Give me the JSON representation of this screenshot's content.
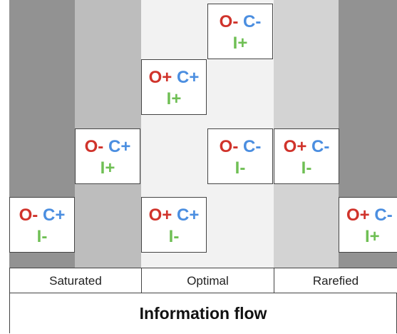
{
  "colors": {
    "o_red": "#d0332b",
    "c_blue": "#4b8ee0",
    "i_green": "#6fbf54",
    "band_dark": "#929292",
    "band_mid": "#bdbdbd",
    "band_light": "#d3d3d3",
    "band_lightest": "#f2f2f2"
  },
  "cells": [
    {
      "id": "cell-top-center",
      "o": "O-",
      "c": "C-",
      "i": "I+"
    },
    {
      "id": "cell-upper-left-center",
      "o": "O+",
      "c": "C+",
      "i": "I+"
    },
    {
      "id": "cell-mid-left",
      "o": "O-",
      "c": "C+",
      "i": "I+"
    },
    {
      "id": "cell-mid-center",
      "o": "O-",
      "c": "C-",
      "i": "I-"
    },
    {
      "id": "cell-mid-right",
      "o": "O+",
      "c": "C-",
      "i": "I-"
    },
    {
      "id": "cell-bottom-far-left",
      "o": "O-",
      "c": "C+",
      "i": "I-"
    },
    {
      "id": "cell-bottom-center-left",
      "o": "O+",
      "c": "C+",
      "i": "I-"
    },
    {
      "id": "cell-bottom-far-right",
      "o": "O+",
      "c": "C-",
      "i": "I+"
    }
  ],
  "labels": {
    "saturated": "Saturated",
    "optimal": "Optimal",
    "rarefied": "Rarefied"
  },
  "title": "Information flow"
}
